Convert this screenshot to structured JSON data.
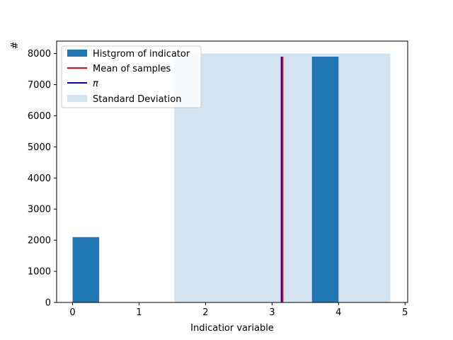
{
  "chart_data": {
    "type": "bar",
    "xlabel": "Indicatior variable",
    "ylabel": "#",
    "xlim": [
      -0.24,
      5.04
    ],
    "ylim": [
      0,
      8400
    ],
    "xticks": [
      0,
      1,
      2,
      3,
      4,
      5
    ],
    "yticks": [
      0,
      1000,
      2000,
      3000,
      4000,
      5000,
      6000,
      7000,
      8000
    ],
    "histogram": {
      "name": "Histgrom of indicator",
      "color": "#1f77b4",
      "bars": [
        {
          "x0": 0.0,
          "x1": 0.4,
          "value": 2100
        },
        {
          "x0": 3.6,
          "x1": 4.0,
          "value": 7900
        }
      ]
    },
    "mean_line": {
      "name": "Mean of samples",
      "x": 3.16,
      "y_top": 7900,
      "color": "#ff0000"
    },
    "pi_line": {
      "name": "π",
      "x": 3.1416,
      "y_top": 7900,
      "color": "#0000cc"
    },
    "std_band": {
      "name": "Standard Deviation",
      "x0": 1.53,
      "x1": 4.78,
      "y_top": 8000,
      "color": "#aecde3"
    },
    "legend_position": "upper-left"
  }
}
